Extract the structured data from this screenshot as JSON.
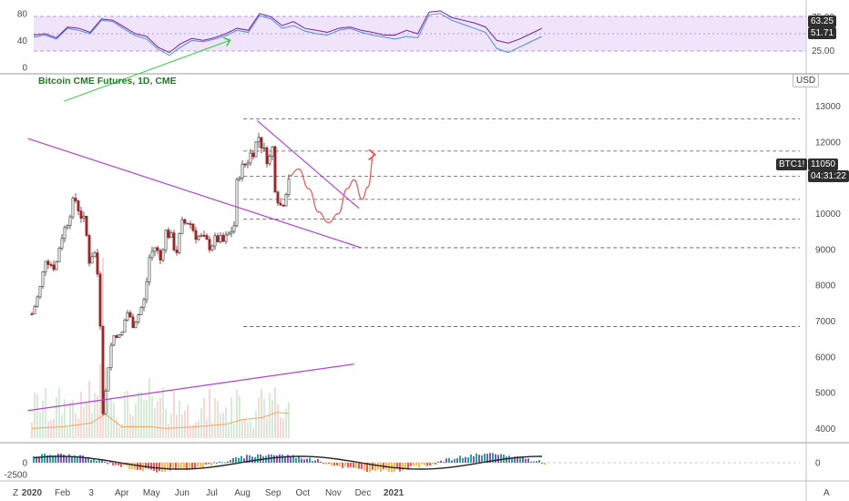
{
  "chart_data": {
    "type": "candlestick",
    "title": "Bitcoin CME Futures, 1D, CME",
    "currency": "USD",
    "symbol_tag": "BTC1!",
    "last_price": "11050",
    "countdown": "04:31:22",
    "x_ticks": [
      "2020",
      "Feb",
      "3",
      "Apr",
      "May",
      "Jun",
      "Jul",
      "Aug",
      "Sep",
      "Oct",
      "Nov",
      "Dec",
      "2021"
    ],
    "price_ticks": [
      13000,
      12000,
      11000,
      10000,
      9000,
      8000,
      7000,
      6000,
      5000,
      4000
    ],
    "price_range": [
      3400,
      13400
    ],
    "rsi_panel": {
      "left_ticks": [
        "80",
        "40",
        "0"
      ],
      "right_ticks": [
        "75.00",
        "25.00"
      ],
      "value_tags": [
        "63.25",
        "51.71"
      ],
      "band": [
        25,
        75
      ]
    },
    "macd_panel": {
      "left_ticks": [
        "0",
        "-2500"
      ],
      "right_ticks": [
        "0"
      ]
    },
    "horizontal_levels": [
      12650,
      11750,
      11050,
      10400,
      9850,
      9050,
      6850
    ],
    "price_path": [
      [
        "2020-01-01",
        7200
      ],
      [
        "2020-01-06",
        7600
      ],
      [
        "2020-01-10",
        8000
      ],
      [
        "2020-01-15",
        8800
      ],
      [
        "2020-01-20",
        8600
      ],
      [
        "2020-01-25",
        8500
      ],
      [
        "2020-01-30",
        9300
      ],
      [
        "2020-02-05",
        9700
      ],
      [
        "2020-02-10",
        10200
      ],
      [
        "2020-02-14",
        10400
      ],
      [
        "2020-02-19",
        10000
      ],
      [
        "2020-02-24",
        9700
      ],
      [
        "2020-02-28",
        8700
      ],
      [
        "2020-03-04",
        9000
      ],
      [
        "2020-03-09",
        8000
      ],
      [
        "2020-03-12",
        5200
      ],
      [
        "2020-03-13",
        4400
      ],
      [
        "2020-03-16",
        5100
      ],
      [
        "2020-03-20",
        6200
      ],
      [
        "2020-03-25",
        6700
      ],
      [
        "2020-03-31",
        6500
      ],
      [
        "2020-04-06",
        7300
      ],
      [
        "2020-04-12",
        6900
      ],
      [
        "2020-04-18",
        7200
      ],
      [
        "2020-04-24",
        7600
      ],
      [
        "2020-04-29",
        8800
      ],
      [
        "2020-05-05",
        9100
      ],
      [
        "2020-05-10",
        8700
      ],
      [
        "2020-05-15",
        9500
      ],
      [
        "2020-05-20",
        9400
      ],
      [
        "2020-05-26",
        8900
      ],
      [
        "2020-06-01",
        9700
      ],
      [
        "2020-06-08",
        9800
      ],
      [
        "2020-06-15",
        9400
      ],
      [
        "2020-06-22",
        9300
      ],
      [
        "2020-06-29",
        9100
      ],
      [
        "2020-07-06",
        9300
      ],
      [
        "2020-07-13",
        9200
      ],
      [
        "2020-07-20",
        9500
      ],
      [
        "2020-07-24",
        9700
      ],
      [
        "2020-07-27",
        11100
      ],
      [
        "2020-08-02",
        11300
      ],
      [
        "2020-08-08",
        11600
      ],
      [
        "2020-08-14",
        11900
      ],
      [
        "2020-08-18",
        12200
      ],
      [
        "2020-08-23",
        11700
      ],
      [
        "2020-08-28",
        11500
      ],
      [
        "2020-09-01",
        11900
      ],
      [
        "2020-09-03",
        10800
      ],
      [
        "2020-09-08",
        10200
      ],
      [
        "2020-09-12",
        10400
      ],
      [
        "2020-09-17",
        11050
      ]
    ],
    "volume_ma": [
      [
        "2020-01-01",
        4000
      ],
      [
        "2020-02-01",
        4050
      ],
      [
        "2020-03-01",
        4150
      ],
      [
        "2020-03-15",
        4400
      ],
      [
        "2020-04-01",
        4050
      ],
      [
        "2020-05-01",
        4050
      ],
      [
        "2020-05-15",
        4000
      ],
      [
        "2020-06-15",
        4050
      ],
      [
        "2020-07-15",
        4120
      ],
      [
        "2020-08-01",
        4250
      ],
      [
        "2020-08-20",
        4300
      ],
      [
        "2020-09-05",
        4450
      ],
      [
        "2020-09-17",
        4420
      ]
    ],
    "projection_path": [
      [
        "2020-09-17",
        11050
      ],
      [
        "2020-09-27",
        11250
      ],
      [
        "2020-10-07",
        10700
      ],
      [
        "2020-10-17",
        10050
      ],
      [
        "2020-10-27",
        9750
      ],
      [
        "2020-11-06",
        10000
      ],
      [
        "2020-11-15",
        10700
      ],
      [
        "2020-11-22",
        10950
      ],
      [
        "2020-11-30",
        10400
      ],
      [
        "2020-12-06",
        10750
      ],
      [
        "2020-12-12",
        11650
      ]
    ],
    "trendlines": [
      {
        "from": [
          "2019-12-28",
          12100
        ],
        "to": [
          "2020-11-29",
          9050
        ]
      },
      {
        "from": [
          "2020-08-16",
          12600
        ],
        "to": [
          "2020-11-27",
          10150
        ]
      },
      {
        "from": [
          "2019-12-28",
          4500
        ],
        "to": [
          "2020-11-22",
          5800
        ]
      }
    ],
    "rsi_series": {
      "purple": [
        48,
        50,
        44,
        60,
        58,
        52,
        72,
        70,
        60,
        50,
        46,
        30,
        22,
        35,
        43,
        40,
        44,
        50,
        58,
        55,
        80,
        75,
        62,
        68,
        58,
        55,
        52,
        58,
        60,
        55,
        52,
        48,
        48,
        55,
        50,
        82,
        84,
        74,
        70,
        66,
        60,
        40,
        36,
        42,
        50,
        58
      ],
      "blue": [
        45,
        48,
        42,
        58,
        55,
        50,
        70,
        68,
        57,
        47,
        42,
        27,
        18,
        30,
        40,
        38,
        42,
        47,
        55,
        52,
        77,
        72,
        58,
        62,
        54,
        50,
        48,
        55,
        58,
        52,
        48,
        45,
        42,
        46,
        44,
        78,
        80,
        70,
        64,
        58,
        52,
        28,
        22,
        30,
        38,
        46
      ],
      "green_support": {
        "from": [
          "2020-03-01",
          20
        ],
        "to": [
          "2020-11-20",
          48
        ]
      }
    }
  },
  "ui": {
    "corner_left_icon": "Z",
    "corner_right_icon": "A"
  }
}
